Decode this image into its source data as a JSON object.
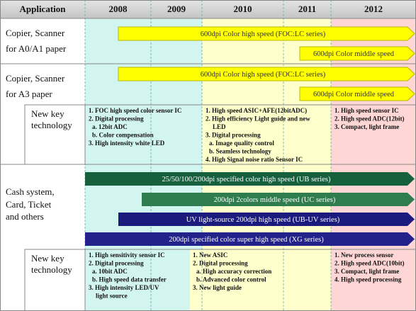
{
  "header": {
    "application": "Application",
    "years": [
      "2008",
      "2009",
      "2010",
      "2011",
      "2012"
    ]
  },
  "sections": [
    {
      "label": [
        "Copier, Scanner",
        "for A0/A1 paper"
      ],
      "arrows": [
        "600dpi Color high speed (FOC:LC series)",
        "600dpi Color middle speed"
      ]
    },
    {
      "label": [
        "Copier, Scanner",
        "for A3 paper"
      ],
      "arrows": [
        "600dpi Color high speed (FOC:LC series)",
        "600dpi Color middle speed"
      ],
      "key_technology": {
        "label": [
          "New key",
          "technology"
        ],
        "columns": [
          [
            "1. FOC high speed color sensor IC",
            "2. Digital processing",
            "a. 12bit ADC",
            "b. Color compensation",
            "3. High intensity white LED"
          ],
          [
            "1. High speed ASIC+AFE(12bitADC)",
            "2. High efficiency Light guide and new",
            "LED",
            "3. Digital processing",
            "a. Image quality control",
            "b. Seamless technology",
            "4. High Signal noise ratio Sensor IC"
          ],
          [
            "1. High speed sensor IC",
            "2. High speed ADC(12bit)",
            "3. Compact, light frame"
          ]
        ]
      }
    },
    {
      "label": [
        "Cash system,",
        "Card, Ticket",
        "and others"
      ],
      "arrows": [
        "25/50/100/200dpi specified color high speed  (UB series)",
        "200dpi 2colors middle speed (UC series)",
        "UV light-source 200dpi high speed (UB-UV series)",
        "200dpi specified color super high speed  (XG series)"
      ],
      "key_technology": {
        "label": [
          "New key",
          "technology"
        ],
        "columns": [
          [
            "1. High sensitivity sensor IC",
            "2. Digital processing",
            "a. 10bit ADC",
            "b. High speed data transfer",
            "3. High intensity LED/UV",
            "light source"
          ],
          [
            "1. New ASIC",
            "2. Digital processing",
            "a. High accuracy correction",
            "b. Advanced color control",
            "3. New light guide"
          ],
          [
            "1. New process sensor",
            "2. High speed ADC(10bit)",
            "3. Compact, light frame",
            "4. High speed processing"
          ]
        ]
      }
    }
  ]
}
